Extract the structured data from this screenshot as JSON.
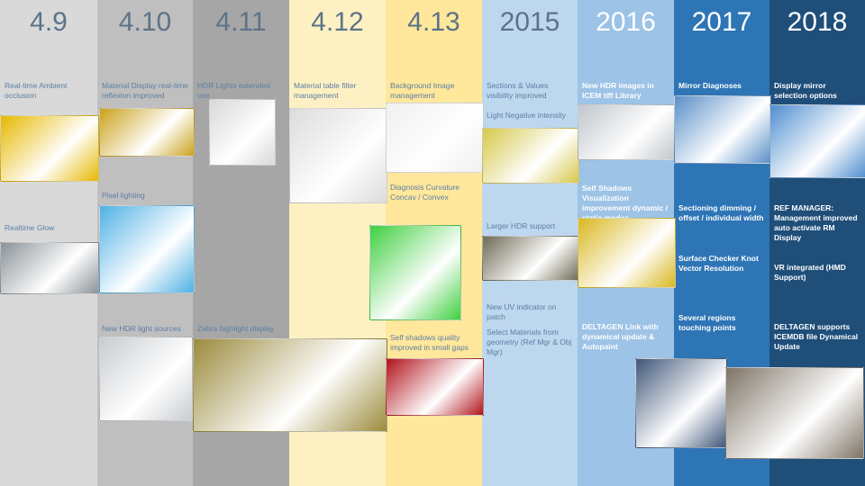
{
  "columns": [
    {
      "header": "4.9",
      "items": [
        "Real-time Ambient occlusion",
        "Realtime Glow"
      ]
    },
    {
      "header": "4.10",
      "items": [
        "Material Display real-time reflexion improved",
        "Pixel lighting",
        "New HDR light sources"
      ]
    },
    {
      "header": "4.11",
      "items": [
        "HDR Lights extended use",
        "Zebra highlight display"
      ]
    },
    {
      "header": "4.12",
      "items": [
        "Material table filter management"
      ]
    },
    {
      "header": "4.13",
      "items": [
        "Background Image management",
        "Diagnosis Curvature Concav / Convex",
        "Self shadows quality improved in small gaps"
      ]
    },
    {
      "header": "2015",
      "items": [
        "Sections & Values visibility improved",
        "Light Negative intensity",
        "Larger HDR support",
        "New UV indicator on patch",
        "Select Materials from geometry (Ref Mgr & Obj Mgr)"
      ]
    },
    {
      "header": "2016",
      "items": [
        "New HDR images in ICEM tiff Library",
        "Self Shadows Visualization improvement dynamic / static modes",
        "DELTAGEN Link with dynamical update & Autopaint"
      ]
    },
    {
      "header": "2017",
      "items": [
        "Mirror Diagnoses",
        "Sectioning dimming / offset / individual width",
        "Surface Checker Knot Vector Resolution",
        "Several regions touching points"
      ]
    },
    {
      "header": "2018",
      "items": [
        "Display mirror selection options",
        "REF MANAGER: Management improved auto activate RM Display",
        "VR integrated (HMD Support)",
        "DELTAGEN supports ICEMDB file Dynamical Update"
      ]
    }
  ]
}
